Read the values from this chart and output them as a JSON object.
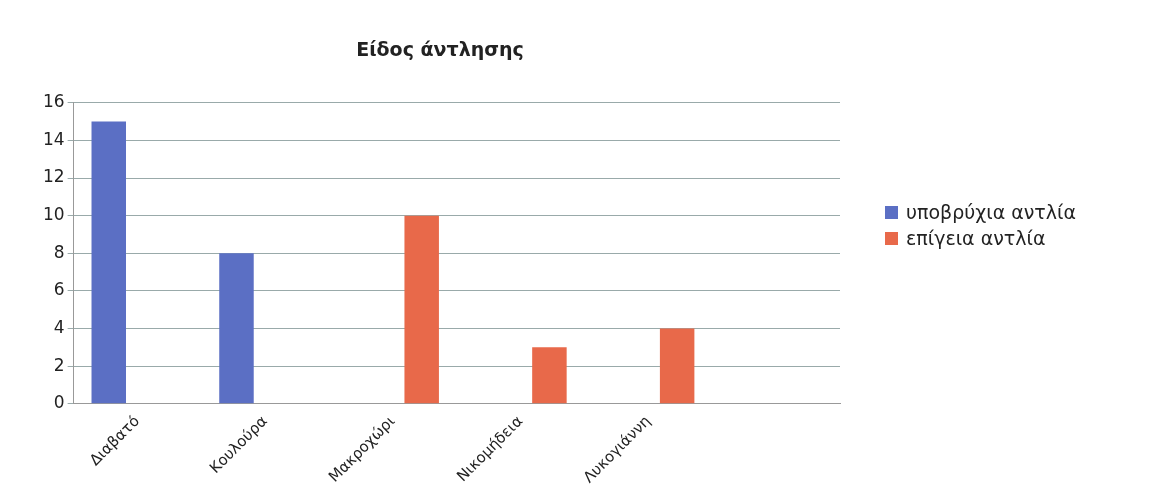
{
  "chart_data": {
    "type": "bar",
    "title": "Είδος άντλησης",
    "categories": [
      "Διαβατό",
      "Κουλούρα",
      "Μακροχώρι",
      "Νικομήδεια",
      "Λυκογιάννη",
      null
    ],
    "series": [
      {
        "name": "υποβρύχια αντλία",
        "color": "#5b6fc4",
        "values": [
          15,
          8,
          null,
          null,
          null,
          null
        ]
      },
      {
        "name": "επίγεια αντλία",
        "color": "#e8694a",
        "values": [
          null,
          null,
          10,
          3,
          4,
          null
        ]
      }
    ],
    "ylim": [
      0,
      16
    ],
    "yticks": [
      0,
      2,
      4,
      6,
      8,
      10,
      12,
      14,
      16
    ],
    "grid": "y",
    "legend": "right"
  }
}
